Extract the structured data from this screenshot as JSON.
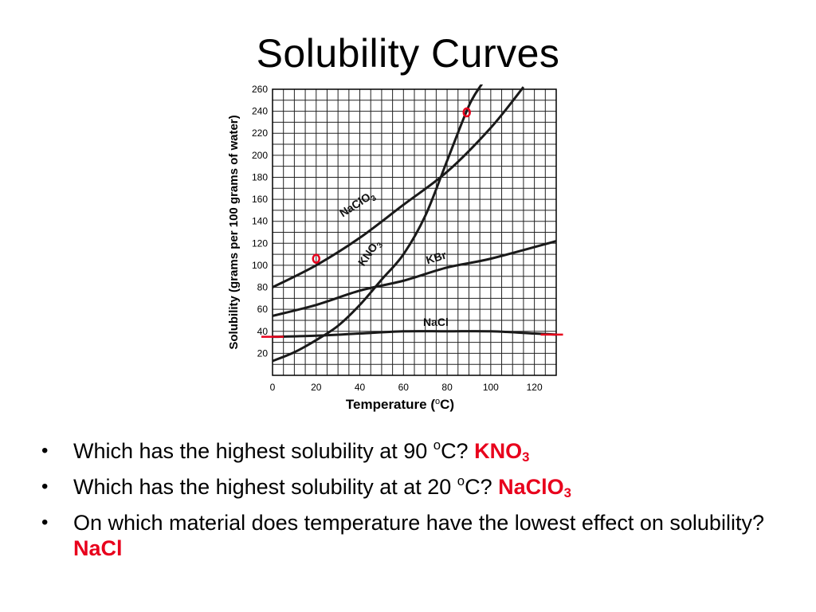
{
  "title": "Solubility Curves",
  "chart_data": {
    "type": "line",
    "xlabel": "Temperature (°C)",
    "ylabel": "Solubility (grams per 100 grams of water)",
    "xlim": [
      0,
      130
    ],
    "ylim": [
      0,
      260
    ],
    "xticks": [
      "0",
      "20",
      "40",
      "60",
      "80",
      "100",
      "120"
    ],
    "yticks": [
      "20",
      "40",
      "60",
      "80",
      "100",
      "120",
      "140",
      "160",
      "180",
      "200",
      "220",
      "240",
      "260"
    ],
    "grid": true,
    "series": [
      {
        "name": "NaClO3",
        "x": [
          0,
          20,
          40,
          60,
          80,
          100,
          115
        ],
        "y": [
          80,
          100,
          125,
          155,
          185,
          225,
          262
        ]
      },
      {
        "name": "KNO3",
        "x": [
          0,
          10,
          20,
          30,
          40,
          50,
          60,
          70,
          80,
          90,
          96
        ],
        "y": [
          13,
          21,
          32,
          45,
          64,
          87,
          110,
          145,
          195,
          245,
          265
        ]
      },
      {
        "name": "KBr",
        "x": [
          0,
          20,
          40,
          60,
          80,
          100,
          130
        ],
        "y": [
          54,
          64,
          77,
          86,
          98,
          106,
          122
        ]
      },
      {
        "name": "NaCl",
        "x": [
          0,
          20,
          40,
          60,
          80,
          100,
          120,
          130
        ],
        "y": [
          35,
          36,
          38,
          40,
          40,
          40,
          38,
          37
        ]
      }
    ],
    "curve_labels": [
      "NaClO",
      "3",
      "KNO",
      "3",
      "KBr",
      "NaCl"
    ],
    "axis_label_parts": {
      "x_prefix": "Temperature (",
      "x_unit": "C)",
      "y": "Solubility (grams per 100 grams of water)"
    },
    "annotations": [
      {
        "shape": "circle",
        "color": "#e8001c",
        "x": 89,
        "y": 239
      },
      {
        "shape": "circle",
        "color": "#e8001c",
        "x": 20,
        "y": 106
      },
      {
        "shape": "dash",
        "color": "#e8001c",
        "x": 0,
        "y": 35
      },
      {
        "shape": "dash",
        "color": "#e8001c",
        "x": 128,
        "y": 37
      }
    ]
  },
  "questions": [
    {
      "text_before": "Which has the highest solubility at 90 ",
      "sup": "o",
      "text_after": "C? ",
      "answer": "KNO",
      "answer_sub": "3"
    },
    {
      "text_before": "Which has the highest solubility at at 20 ",
      "sup": "o",
      "text_after": "C? ",
      "answer": "NaClO",
      "answer_sub": "3"
    },
    {
      "text_before": "On which material does temperature have the lowest effect on solubility? ",
      "answer": "NaCl"
    }
  ],
  "bullet_char": "•"
}
